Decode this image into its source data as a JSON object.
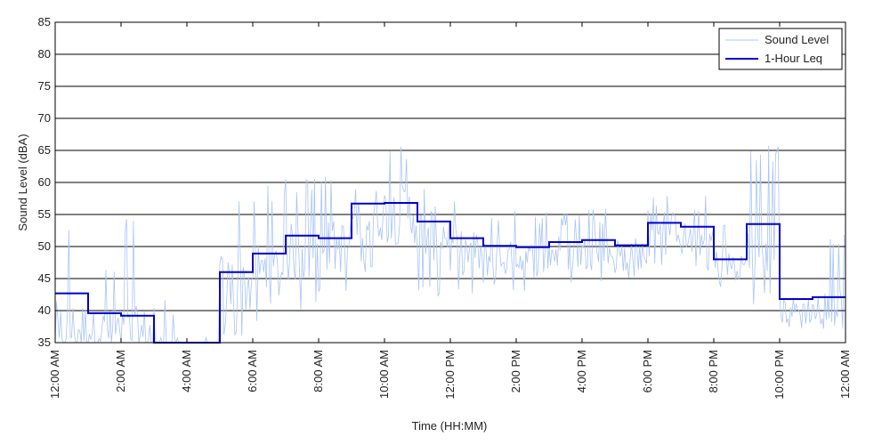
{
  "chart_data": {
    "type": "line",
    "xlabel": "Time (HH:MM)",
    "ylabel": "Sound Level (dBA)",
    "ylim": [
      35,
      85
    ],
    "xlim_hours": [
      0,
      24
    ],
    "yticks": [
      35,
      40,
      45,
      50,
      55,
      60,
      65,
      70,
      75,
      80,
      85
    ],
    "xtick_hours": [
      0,
      2,
      4,
      6,
      8,
      10,
      12,
      14,
      16,
      18,
      20,
      22,
      24
    ],
    "xtick_labels": [
      "12:00 AM",
      "2:00 AM",
      "4:00 AM",
      "6:00 AM",
      "8:00 AM",
      "10:00 AM",
      "12:00 PM",
      "2:00 PM",
      "4:00 PM",
      "6:00 PM",
      "8:00 PM",
      "10:00 PM",
      "12:00 AM"
    ],
    "grid": "horizontal",
    "legend_position": "top-right",
    "series": [
      {
        "name": "Sound Level",
        "color": "#a9c4f5",
        "style": "thin-noisy-line",
        "hourly_envelope": [
          {
            "hour_start": 0,
            "low": 34,
            "high": 54,
            "typical": 37
          },
          {
            "hour_start": 1,
            "low": 34,
            "high": 48,
            "typical": 37
          },
          {
            "hour_start": 2,
            "low": 34,
            "high": 55,
            "typical": 36
          },
          {
            "hour_start": 3,
            "low": 34,
            "high": 42,
            "typical": 34
          },
          {
            "hour_start": 4,
            "low": 34,
            "high": 36,
            "typical": 34
          },
          {
            "hour_start": 5,
            "low": 36,
            "high": 58,
            "typical": 44
          },
          {
            "hour_start": 6,
            "low": 38,
            "high": 60,
            "typical": 46
          },
          {
            "hour_start": 7,
            "low": 40,
            "high": 61,
            "typical": 49
          },
          {
            "hour_start": 8,
            "low": 42,
            "high": 61,
            "typical": 50
          },
          {
            "hour_start": 9,
            "low": 46,
            "high": 65,
            "typical": 55
          },
          {
            "hour_start": 10,
            "low": 45,
            "high": 66,
            "typical": 55
          },
          {
            "hour_start": 11,
            "low": 42,
            "high": 61,
            "typical": 52
          },
          {
            "hour_start": 12,
            "low": 42,
            "high": 58,
            "typical": 49
          },
          {
            "hour_start": 13,
            "low": 43,
            "high": 56,
            "typical": 48
          },
          {
            "hour_start": 14,
            "low": 43,
            "high": 56,
            "typical": 48
          },
          {
            "hour_start": 15,
            "low": 43,
            "high": 56,
            "typical": 49
          },
          {
            "hour_start": 16,
            "low": 44,
            "high": 56,
            "typical": 49
          },
          {
            "hour_start": 17,
            "low": 45,
            "high": 56,
            "typical": 49
          },
          {
            "hour_start": 18,
            "low": 47,
            "high": 58,
            "typical": 53
          },
          {
            "hour_start": 19,
            "low": 45,
            "high": 58,
            "typical": 51
          },
          {
            "hour_start": 20,
            "low": 43,
            "high": 55,
            "typical": 47
          },
          {
            "hour_start": 21,
            "low": 41,
            "high": 66,
            "typical": 49
          },
          {
            "hour_start": 22,
            "low": 37,
            "high": 47,
            "typical": 40
          },
          {
            "hour_start": 23,
            "low": 37,
            "high": 52,
            "typical": 40
          }
        ]
      },
      {
        "name": "1-Hour Leq",
        "color": "#0000cc",
        "style": "step",
        "hour_starts": [
          0,
          1,
          2,
          3,
          4,
          5,
          6,
          7,
          8,
          9,
          10,
          11,
          12,
          13,
          14,
          15,
          16,
          17,
          18,
          19,
          20,
          21,
          22,
          23
        ],
        "values": [
          42.7,
          39.6,
          39.2,
          34.0,
          34.0,
          46.0,
          48.9,
          51.7,
          51.3,
          56.7,
          56.8,
          53.9,
          51.3,
          50.1,
          49.9,
          50.7,
          51.0,
          50.2,
          53.7,
          53.1,
          48.0,
          53.5,
          41.8,
          42.1
        ]
      }
    ]
  }
}
